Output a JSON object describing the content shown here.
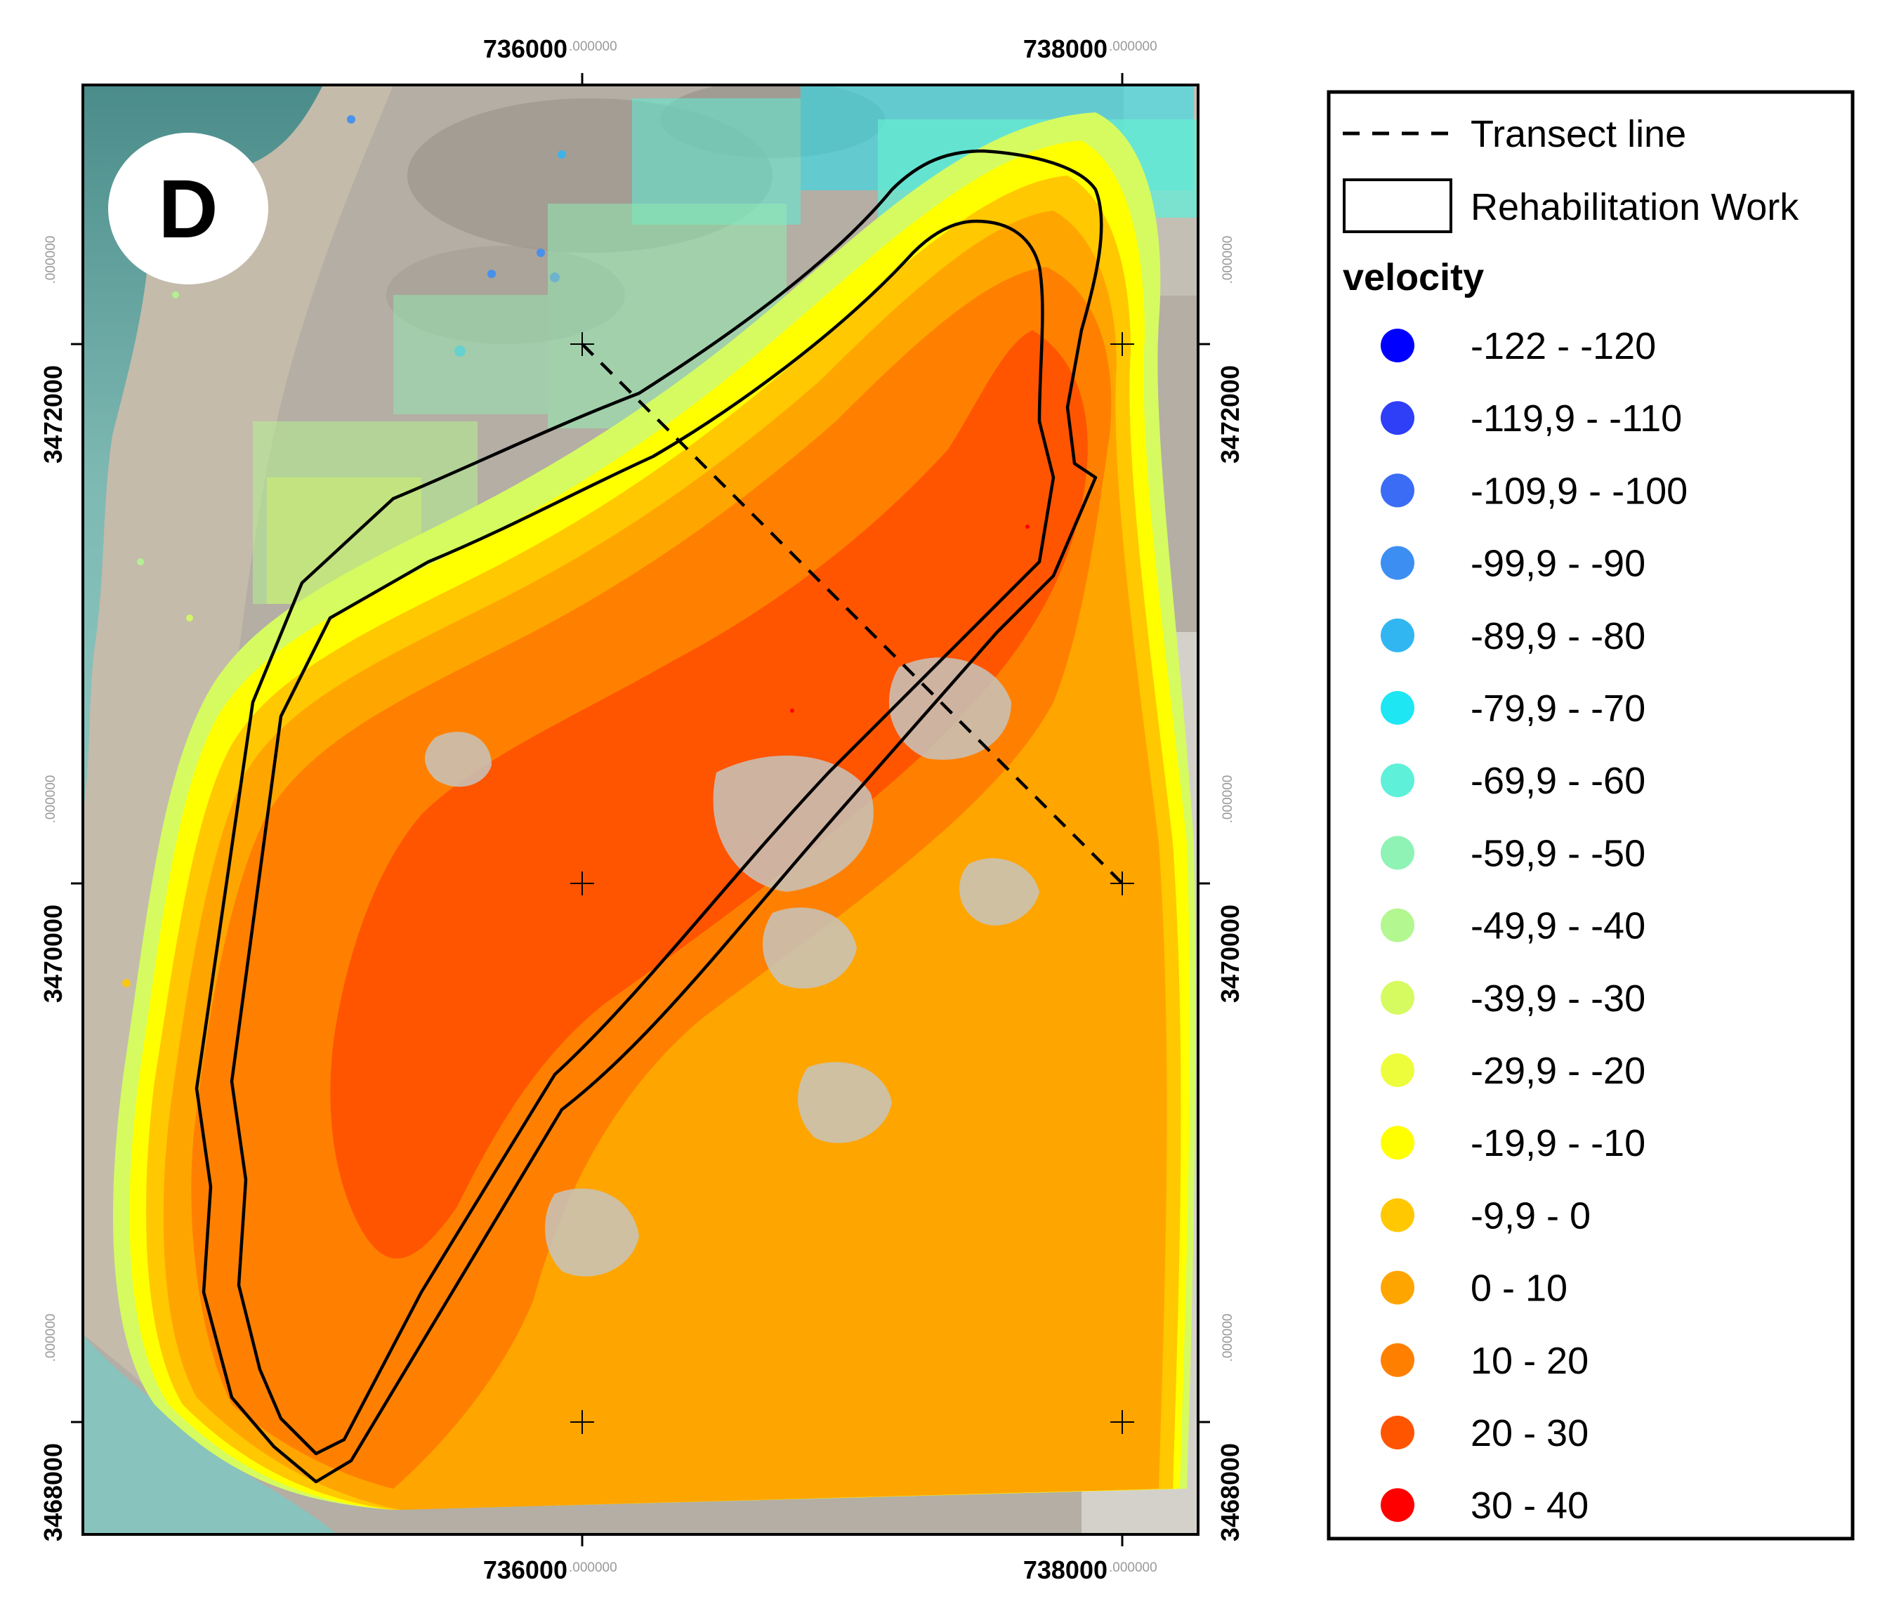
{
  "panel_label": "D",
  "grid_labels": {
    "easting": [
      {
        "main": "736000",
        "dec": ".000000"
      },
      {
        "main": "738000",
        "dec": ".000000"
      }
    ],
    "northing": [
      {
        "main": "3472000",
        "dec": ".000000"
      },
      {
        "main": "3470000",
        "dec": ".000000"
      },
      {
        "main": "3468000",
        "dec": ".000000"
      }
    ]
  },
  "legend": {
    "transect_label": "Transect line",
    "rehab_label": "Rehabilitation Work",
    "title": "velocity",
    "classes": [
      {
        "label": "-122 - -120",
        "color": "#0000ff"
      },
      {
        "label": "-119,9 - -110",
        "color": "#2e3ff7"
      },
      {
        "label": "-109,9 - -100",
        "color": "#3b6cf5"
      },
      {
        "label": "-99,9 - -90",
        "color": "#3d8ef3"
      },
      {
        "label": "-89,9 - -80",
        "color": "#31b6f2"
      },
      {
        "label": "-79,9 - -70",
        "color": "#1ee6f3"
      },
      {
        "label": "-69,9 - -60",
        "color": "#5ef0d8"
      },
      {
        "label": "-59,9 - -50",
        "color": "#8ef3b5"
      },
      {
        "label": "-49,9 - -40",
        "color": "#b2f78f"
      },
      {
        "label": "-39,9 - -30",
        "color": "#d5fb60"
      },
      {
        "label": "-29,9 - -20",
        "color": "#eefd3b"
      },
      {
        "label": "-19,9 - -10",
        "color": "#ffff00"
      },
      {
        "label": "-9,9 - 0",
        "color": "#ffc800"
      },
      {
        "label": "0 - 10",
        "color": "#ffa500"
      },
      {
        "label": "10 - 20",
        "color": "#ff8000"
      },
      {
        "label": "20 - 30",
        "color": "#ff5500"
      },
      {
        "label": "30 - 40",
        "color": "#ff0000"
      }
    ]
  }
}
